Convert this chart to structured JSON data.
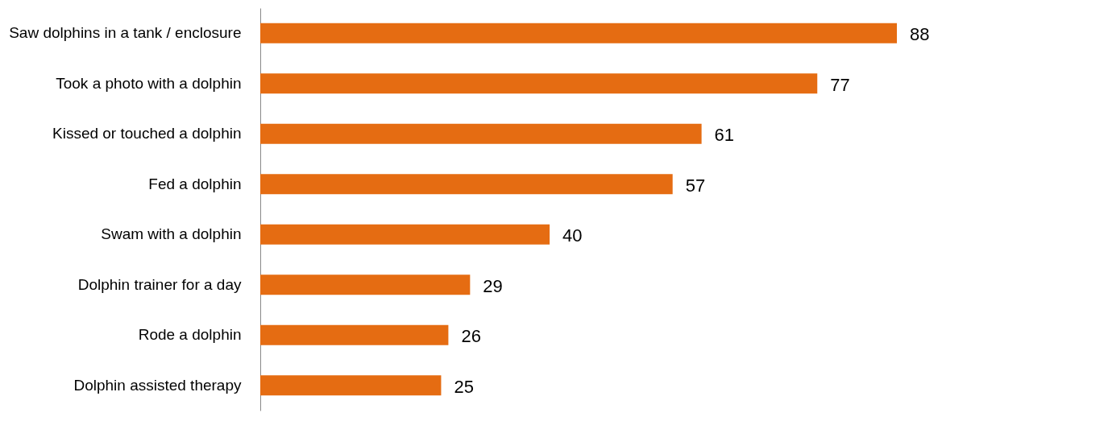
{
  "chart_data": {
    "type": "bar",
    "orientation": "horizontal",
    "categories": [
      "Saw dolphins in a tank / enclosure",
      "Took a photo with a dolphin",
      "Kissed or touched a dolphin",
      "Fed a dolphin",
      "Swam with a dolphin",
      "Dolphin trainer for a day",
      "Rode a dolphin",
      "Dolphin assisted therapy"
    ],
    "values": [
      88,
      77,
      61,
      57,
      40,
      29,
      26,
      25
    ],
    "color": "#e56c12",
    "data_labels": true
  }
}
